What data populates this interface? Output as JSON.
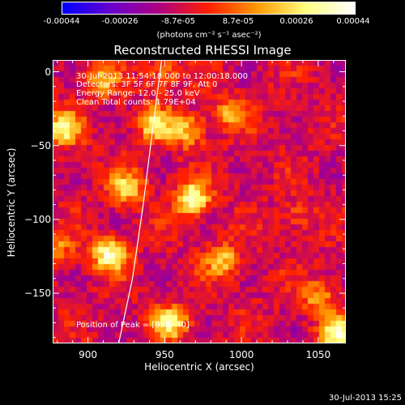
{
  "colorbar": {
    "ticks": [
      "-0.00044",
      "-0.00026",
      "-8.7e-05",
      "8.7e-05",
      "0.00026",
      "0.00044"
    ],
    "unit_label": "(photons cm⁻² s⁻¹ asec⁻²)",
    "colors": [
      "#0000ff",
      "#6a00cc",
      "#b00080",
      "#ff2000",
      "#ff9a00",
      "#ffff80",
      "#ffffff"
    ]
  },
  "chart_data": {
    "type": "heatmap",
    "title": "Reconstructed RHESSI Image",
    "xlabel": "Heliocentric X (arcsec)",
    "ylabel": "Heliocentric Y (arcsec)",
    "xlim": [
      877,
      1068
    ],
    "ylim": [
      -184,
      8
    ],
    "xticks": [
      900,
      950,
      1000,
      1050
    ],
    "yticks": [
      0,
      -50,
      -100,
      -150
    ],
    "value_range": [
      -0.00044,
      0.00044
    ],
    "sources": [
      {
        "x": 884,
        "y": -38,
        "value": 0.00038
      },
      {
        "x": 908,
        "y": -6,
        "value": 0.00026
      },
      {
        "x": 926,
        "y": -78,
        "value": 0.00032
      },
      {
        "x": 944,
        "y": -36,
        "value": 0.00034
      },
      {
        "x": 948,
        "y": 0,
        "value": 0.0002
      },
      {
        "x": 968,
        "y": -86,
        "value": 0.00044
      },
      {
        "x": 992,
        "y": -28,
        "value": 0.00024
      },
      {
        "x": 914,
        "y": -124,
        "value": 0.00044
      },
      {
        "x": 965,
        "y": -40,
        "value": 0.0003
      },
      {
        "x": 988,
        "y": -128,
        "value": 0.0003
      },
      {
        "x": 954,
        "y": -170,
        "value": 0.00036
      },
      {
        "x": 1050,
        "y": -152,
        "value": 0.00024
      },
      {
        "x": 1063,
        "y": -178,
        "value": 0.00044
      },
      {
        "x": 880,
        "y": -120,
        "value": 0.0002
      },
      {
        "x": 1035,
        "y": -98,
        "value": 0.00012
      }
    ],
    "limb_curve": [
      [
        948,
        8
      ],
      [
        942,
        -40
      ],
      [
        936,
        -90
      ],
      [
        929,
        -140
      ],
      [
        920,
        -184
      ]
    ],
    "annotations": {
      "time_range": "30-Jul-2013 11:54:18.000 to 12:00:18.000",
      "detectors": "Detectors: 3F 5F 6F 7F 8F 9F, Att 0",
      "energy": "Energy Range: 12.0 - 25.0 keV",
      "method": "Clean     Total counts: 1.79E+04",
      "peak": "Position of Peak = [958,-40]"
    }
  },
  "timestamp": "30-Jul-2013 15:25"
}
